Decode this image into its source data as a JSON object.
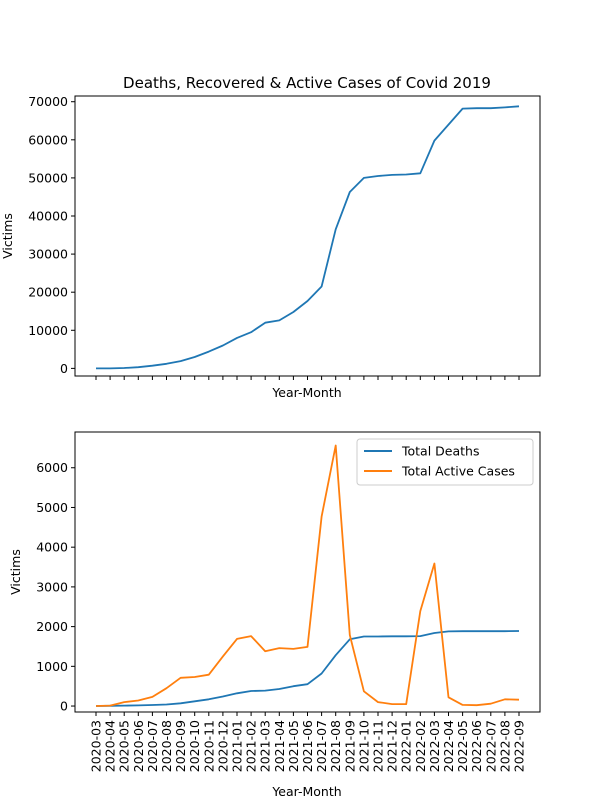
{
  "chart_data": [
    {
      "type": "line",
      "title": "Deaths, Recovered & Active Cases of Covid 2019",
      "xlabel": "Year-Month",
      "ylabel": "Victims",
      "ylim": [
        -2000,
        71500
      ],
      "yticks": [
        0,
        10000,
        20000,
        30000,
        40000,
        50000,
        60000,
        70000
      ],
      "grid": false,
      "legend": "none",
      "categories": [
        "2020-03",
        "2020-04",
        "2020-05",
        "2020-06",
        "2020-07",
        "2020-08",
        "2020-09",
        "2020-10",
        "2020-11",
        "2020-12",
        "2021-01",
        "2021-02",
        "2021-03",
        "2021-04",
        "2021-05",
        "2021-06",
        "2021-07",
        "2021-08",
        "2021-09",
        "2021-10",
        "2021-11",
        "2021-12",
        "2022-01",
        "2022-02",
        "2022-03",
        "2022-04",
        "2022-05",
        "2022-06",
        "2022-07",
        "2022-08",
        "2022-09"
      ],
      "series": [
        {
          "color": "#1f77b4",
          "values": [
            0,
            0,
            100,
            300,
            700,
            1200,
            1900,
            3000,
            4400,
            6000,
            8000,
            9500,
            12000,
            12600,
            14800,
            17700,
            21500,
            36500,
            46300,
            50000,
            50500,
            50800,
            50900,
            51200,
            59800,
            64000,
            68200,
            68300,
            68300,
            68500,
            68800
          ]
        }
      ]
    },
    {
      "type": "line",
      "title": "",
      "xlabel": "Year-Month",
      "ylabel": "Victims",
      "ylim": [
        -150,
        6900
      ],
      "yticks": [
        0,
        1000,
        2000,
        3000,
        4000,
        5000,
        6000
      ],
      "grid": false,
      "legend": "top-right",
      "categories": [
        "2020-03",
        "2020-04",
        "2020-05",
        "2020-06",
        "2020-07",
        "2020-08",
        "2020-09",
        "2020-10",
        "2020-11",
        "2020-12",
        "2021-01",
        "2021-02",
        "2021-03",
        "2021-04",
        "2021-05",
        "2021-06",
        "2021-07",
        "2021-08",
        "2021-09",
        "2021-10",
        "2021-11",
        "2021-12",
        "2022-01",
        "2022-02",
        "2022-03",
        "2022-04",
        "2022-05",
        "2022-06",
        "2022-07",
        "2022-08",
        "2022-09"
      ],
      "series": [
        {
          "name": "Total Deaths",
          "color": "#1f77b4",
          "values": [
            0,
            5,
            10,
            15,
            25,
            40,
            70,
            120,
            170,
            240,
            320,
            380,
            390,
            430,
            500,
            550,
            820,
            1280,
            1680,
            1750,
            1750,
            1755,
            1755,
            1760,
            1840,
            1880,
            1885,
            1885,
            1885,
            1885,
            1890
          ]
        },
        {
          "name": "Total Active Cases",
          "color": "#ff7f0e",
          "values": [
            0,
            10,
            100,
            140,
            230,
            450,
            710,
            730,
            790,
            1250,
            1690,
            1760,
            1380,
            1460,
            1440,
            1490,
            4770,
            6560,
            1790,
            370,
            100,
            50,
            50,
            2390,
            3590,
            220,
            30,
            20,
            60,
            170,
            160
          ]
        }
      ]
    }
  ]
}
